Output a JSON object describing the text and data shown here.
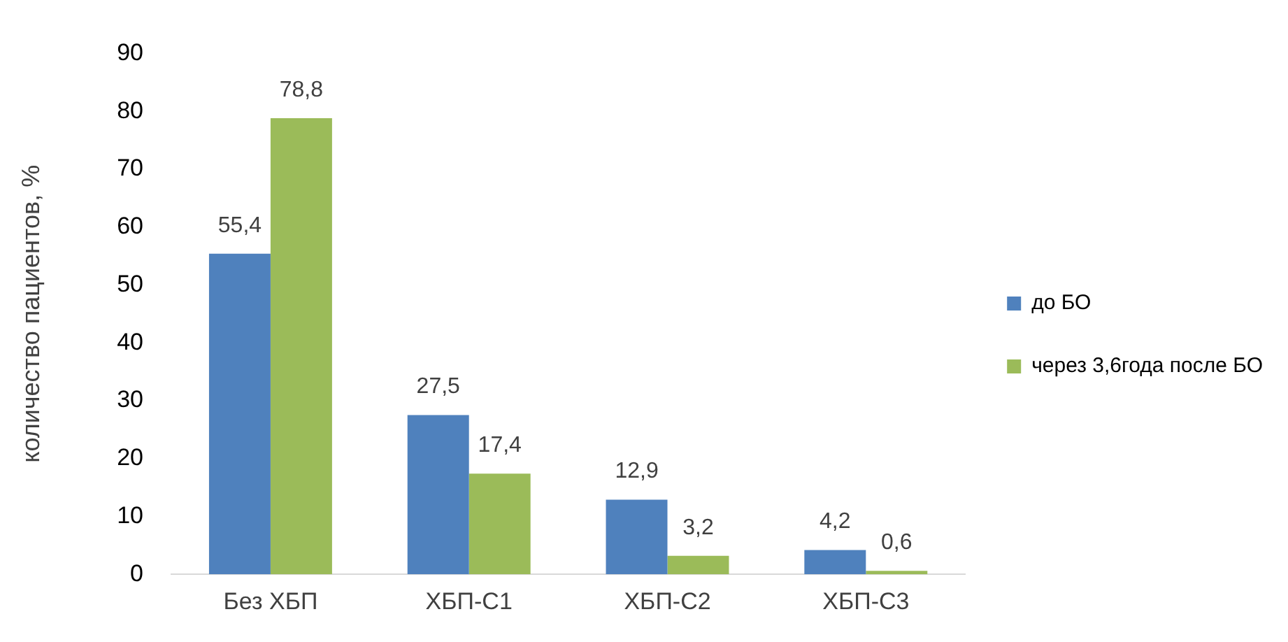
{
  "chart_data": {
    "type": "bar",
    "ylabel": "количество пациентов, %",
    "categories": [
      "Без ХБП",
      "ХБП-С1",
      "ХБП-С2",
      "ХБП-С3"
    ],
    "series": [
      {
        "name": "до БО",
        "color": "#4f81bd",
        "values": [
          55.4,
          27.5,
          12.9,
          4.2
        ],
        "value_labels": [
          "55,4",
          "27,5",
          "12,9",
          "4,2"
        ]
      },
      {
        "name": "через 3,6года после БО",
        "color": "#9bbb59",
        "values": [
          78.8,
          17.4,
          3.2,
          0.6
        ],
        "value_labels": [
          "78,8",
          "17,4",
          "3,2",
          "0,6"
        ]
      }
    ],
    "ylim": [
      0,
      90
    ],
    "yticks": [
      0,
      10,
      20,
      30,
      40,
      50,
      60,
      70,
      80,
      90
    ],
    "grid": false,
    "legend": "right"
  }
}
